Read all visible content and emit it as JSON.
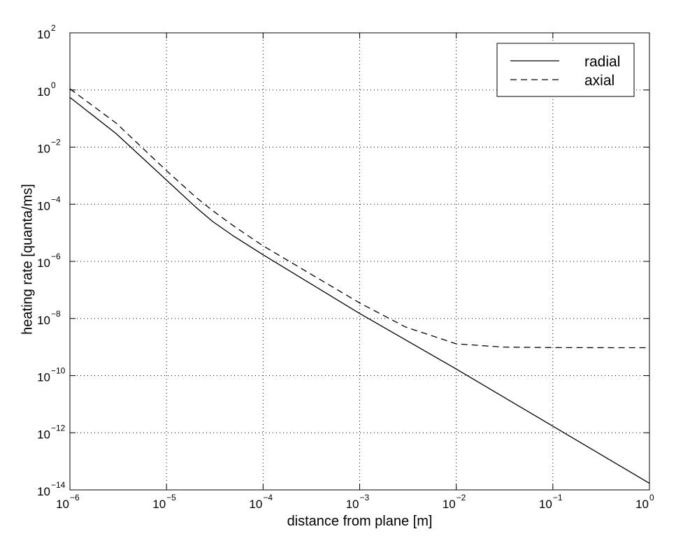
{
  "chart_data": {
    "type": "line",
    "xscale": "log",
    "yscale": "log",
    "xlabel": "distance from plane [m]",
    "ylabel": "heating rate [quanta/ms]",
    "xlim": [
      1e-06,
      1
    ],
    "ylim": [
      1e-14,
      100
    ],
    "grid": true,
    "legend_position": "top-right",
    "x_ticks": [
      {
        "value": 1e-06,
        "base": "10",
        "exp": "−6"
      },
      {
        "value": 1e-05,
        "base": "10",
        "exp": "−5"
      },
      {
        "value": 0.0001,
        "base": "10",
        "exp": "−4"
      },
      {
        "value": 0.001,
        "base": "10",
        "exp": "−3"
      },
      {
        "value": 0.01,
        "base": "10",
        "exp": "−2"
      },
      {
        "value": 0.1,
        "base": "10",
        "exp": "−1"
      },
      {
        "value": 1,
        "base": "10",
        "exp": "0"
      }
    ],
    "y_ticks": [
      {
        "value": 1e-14,
        "base": "10",
        "exp": "−14"
      },
      {
        "value": 1e-12,
        "base": "10",
        "exp": "−12"
      },
      {
        "value": 1e-10,
        "base": "10",
        "exp": "−10"
      },
      {
        "value": 1e-08,
        "base": "10",
        "exp": "−8"
      },
      {
        "value": 1e-06,
        "base": "10",
        "exp": "−6"
      },
      {
        "value": 0.0001,
        "base": "10",
        "exp": "−4"
      },
      {
        "value": 0.01,
        "base": "10",
        "exp": "−2"
      },
      {
        "value": 1,
        "base": "10",
        "exp": "0"
      },
      {
        "value": 100,
        "base": "10",
        "exp": "2"
      }
    ],
    "series": [
      {
        "name": "radial",
        "style": "solid",
        "color": "#000000",
        "points": [
          [
            1e-06,
            0.55
          ],
          [
            3e-06,
            0.03
          ],
          [
            1e-05,
            0.0007
          ],
          [
            2e-05,
            8e-05
          ],
          [
            3e-05,
            2.5e-05
          ],
          [
            5e-05,
            7.5e-06
          ],
          [
            0.0001,
            1.7e-06
          ],
          [
            0.001,
            1.5e-08
          ],
          [
            0.01,
            1.7e-10
          ],
          [
            0.1,
            1.7e-12
          ],
          [
            1,
            1.7e-14
          ]
        ]
      },
      {
        "name": "axial",
        "style": "dashed",
        "color": "#000000",
        "points": [
          [
            1e-06,
            1.1
          ],
          [
            3e-06,
            0.07
          ],
          [
            1e-05,
            0.0015
          ],
          [
            2e-05,
            0.00018
          ],
          [
            3e-05,
            6e-05
          ],
          [
            5e-05,
            1.7e-05
          ],
          [
            0.0001,
            3.5e-06
          ],
          [
            0.001,
            3.5e-08
          ],
          [
            0.003,
            5e-09
          ],
          [
            0.01,
            1.3e-09
          ],
          [
            0.03,
            1e-09
          ],
          [
            0.1,
            9.6e-10
          ],
          [
            1,
            9.5e-10
          ]
        ]
      }
    ]
  }
}
